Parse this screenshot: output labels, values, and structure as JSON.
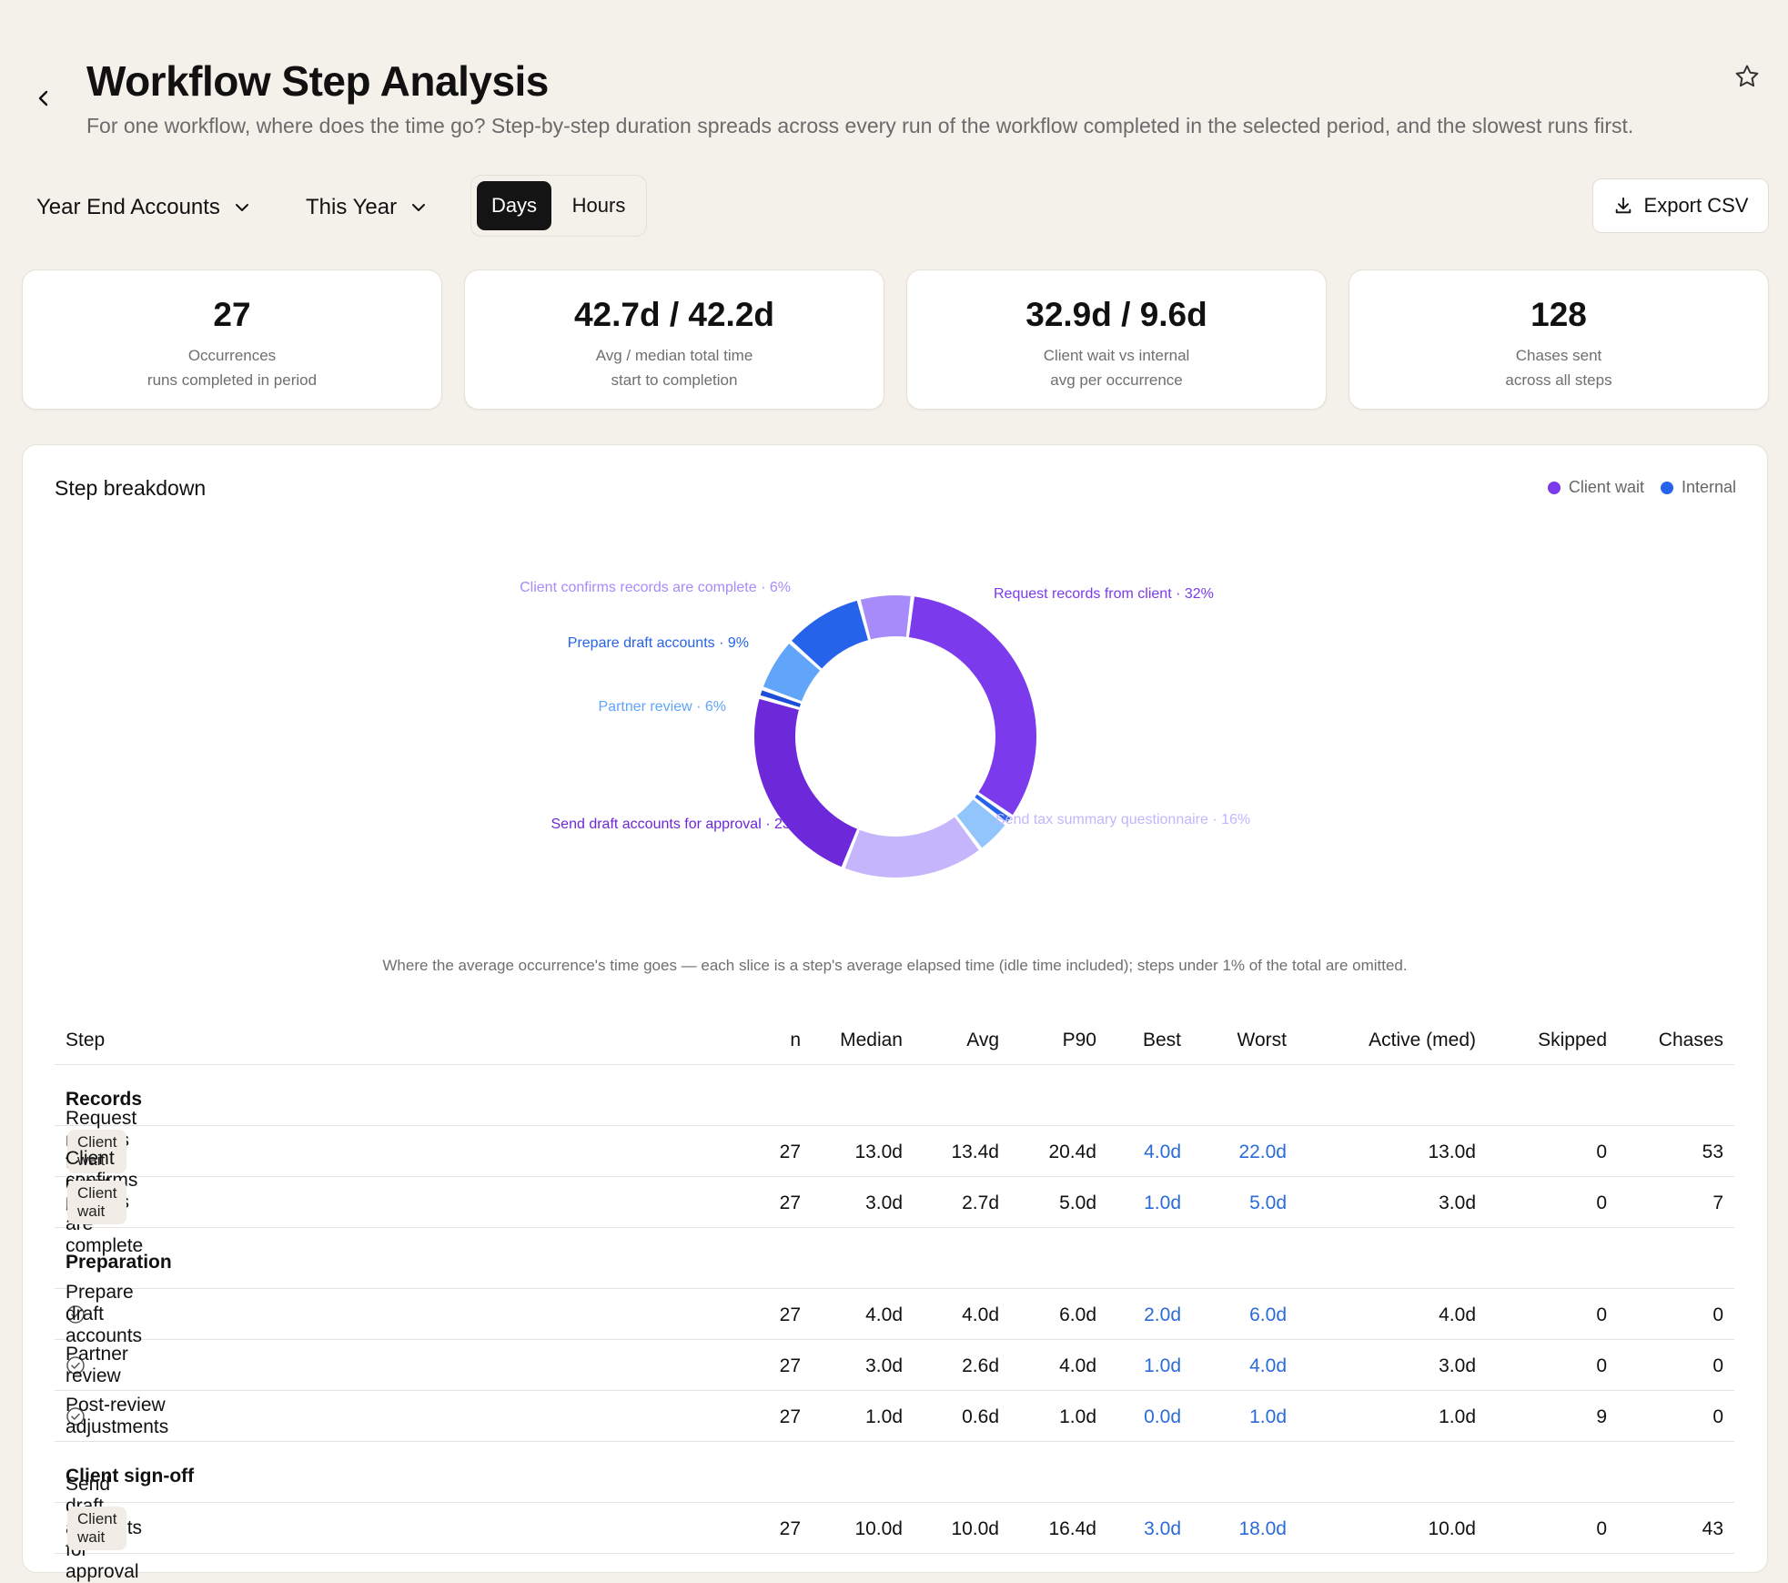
{
  "header": {
    "title": "Workflow Step Analysis",
    "subtitle": "For one workflow, where does the time go? Step-by-step duration spreads across every run of the workflow completed in the selected period, and the slowest runs first."
  },
  "toolbar": {
    "workflow_select": "Year End Accounts",
    "period_select": "This Year",
    "unit_options": [
      "Days",
      "Hours"
    ],
    "unit_selected": "Days",
    "export_label": "Export CSV"
  },
  "stats": [
    {
      "value": "27",
      "label": "Occurrences",
      "sub": "runs completed in period"
    },
    {
      "value": "42.7d / 42.2d",
      "label": "Avg / median total time",
      "sub": "start to completion"
    },
    {
      "value": "32.9d / 9.6d",
      "label": "Client wait vs internal",
      "sub": "avg per occurrence"
    },
    {
      "value": "128",
      "label": "Chases sent",
      "sub": "across all steps"
    }
  ],
  "breakdown": {
    "title": "Step breakdown",
    "legend": [
      {
        "label": "Client wait",
        "color": "#7c3aed"
      },
      {
        "label": "Internal",
        "color": "#2563eb"
      }
    ],
    "caption": "Where the average occurrence's time goes — each slice is a step's average elapsed time (idle time included); steps under 1% of the total are omitted."
  },
  "chart_data": {
    "type": "pie",
    "slices": [
      {
        "label": "Request records from client · 32%",
        "name": "Request records from client",
        "value": 32,
        "color": "#7c3aed",
        "label_color": "#7c3aed",
        "show_label": true
      },
      {
        "label": "",
        "name": "Small internal step",
        "value": 1,
        "color": "#2563eb",
        "label_color": "#2563eb",
        "show_label": false
      },
      {
        "label": "",
        "name": "Small internal step",
        "value": 4,
        "color": "#93c5fd",
        "label_color": "#93c5fd",
        "show_label": false
      },
      {
        "label": "Send tax summary questionnaire · 16%",
        "name": "Send tax summary questionnaire",
        "value": 16,
        "color": "#c4b5fd",
        "label_color": "#c4b5fd",
        "show_label": true
      },
      {
        "label": "Send draft accounts for approval · 23%",
        "name": "Send draft accounts for approval",
        "value": 23,
        "color": "#6d28d9",
        "label_color": "#6d28d9",
        "show_label": true
      },
      {
        "label": "",
        "name": "Small internal step",
        "value": 1,
        "color": "#1d4ed8",
        "label_color": "#1d4ed8",
        "show_label": false
      },
      {
        "label": "Partner review · 6%",
        "name": "Partner review",
        "value": 6,
        "color": "#60a5fa",
        "label_color": "#60a5fa",
        "show_label": true
      },
      {
        "label": "Prepare draft accounts · 9%",
        "name": "Prepare draft accounts",
        "value": 9,
        "color": "#2563eb",
        "label_color": "#2563eb",
        "show_label": true
      },
      {
        "label": "Client confirms records are complete · 6%",
        "name": "Client confirms records are complete",
        "value": 6,
        "color": "#a78bfa",
        "label_color": "#a78bfa",
        "show_label": true
      }
    ]
  },
  "table": {
    "columns": [
      "Step",
      "n",
      "Median",
      "Avg",
      "P90",
      "Best",
      "Worst",
      "Active (med)",
      "Skipped",
      "Chases"
    ],
    "groups": [
      {
        "name": "Records",
        "rows": [
          {
            "icon": "document-icon",
            "step": "Request records from client",
            "badge": "Client wait",
            "n": "27",
            "median": "13.0d",
            "avg": "13.4d",
            "p90": "20.4d",
            "best": "4.0d",
            "worst": "22.0d",
            "active": "13.0d",
            "skipped": "0",
            "chases": "53"
          },
          {
            "icon": "user-check-icon",
            "step": "Client confirms records are complete",
            "badge": "Client wait",
            "n": "27",
            "median": "3.0d",
            "avg": "2.7d",
            "p90": "5.0d",
            "best": "1.0d",
            "worst": "5.0d",
            "active": "3.0d",
            "skipped": "0",
            "chases": "7"
          }
        ]
      },
      {
        "name": "Preparation",
        "rows": [
          {
            "icon": "check-circle-icon",
            "step": "Prepare draft accounts",
            "badge": "",
            "n": "27",
            "median": "4.0d",
            "avg": "4.0d",
            "p90": "6.0d",
            "best": "2.0d",
            "worst": "6.0d",
            "active": "4.0d",
            "skipped": "0",
            "chases": "0"
          },
          {
            "icon": "check-circle-icon",
            "step": "Partner review",
            "badge": "",
            "n": "27",
            "median": "3.0d",
            "avg": "2.6d",
            "p90": "4.0d",
            "best": "1.0d",
            "worst": "4.0d",
            "active": "3.0d",
            "skipped": "0",
            "chases": "0"
          },
          {
            "icon": "check-circle-icon",
            "step": "Post-review adjustments",
            "badge": "",
            "n": "27",
            "median": "1.0d",
            "avg": "0.6d",
            "p90": "1.0d",
            "best": "0.0d",
            "worst": "1.0d",
            "active": "1.0d",
            "skipped": "9",
            "chases": "0"
          }
        ]
      },
      {
        "name": "Client sign-off",
        "rows": [
          {
            "icon": "document-sign-icon",
            "step": "Send draft accounts for approval",
            "badge": "Client wait",
            "n": "27",
            "median": "10.0d",
            "avg": "10.0d",
            "p90": "16.4d",
            "best": "3.0d",
            "worst": "18.0d",
            "active": "10.0d",
            "skipped": "0",
            "chases": "43"
          }
        ]
      }
    ]
  }
}
